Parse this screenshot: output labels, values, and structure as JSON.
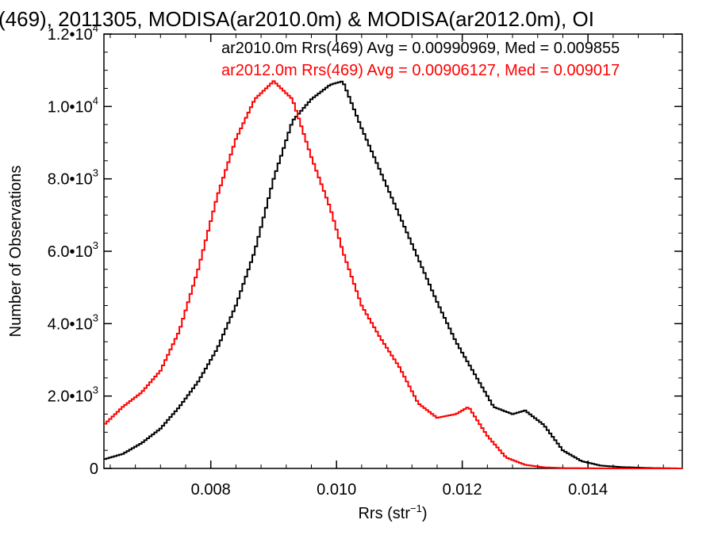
{
  "chart_data": {
    "type": "line",
    "title": "(469), 2011305, MODISA(ar2010.0m) & MODISA(ar2012.0m), OI",
    "xlabel": "Rrs (str",
    "xlabel_sup": "−1",
    "xlabel_suffix": ")",
    "ylabel": "Number of Observations",
    "xlim": [
      0.0063,
      0.0155
    ],
    "ylim": [
      0,
      12000
    ],
    "grid": false,
    "legend_position": "top-right",
    "x_ticks": [
      {
        "value": 0.008,
        "label": "0.008"
      },
      {
        "value": 0.01,
        "label": "0.010"
      },
      {
        "value": 0.012,
        "label": "0.012"
      },
      {
        "value": 0.014,
        "label": "0.014"
      }
    ],
    "y_ticks": [
      {
        "value": 0,
        "mant": "0",
        "exp": ""
      },
      {
        "value": 2000,
        "mant": "2.0•10",
        "exp": "3"
      },
      {
        "value": 4000,
        "mant": "4.0•10",
        "exp": "3"
      },
      {
        "value": 6000,
        "mant": "6.0•10",
        "exp": "3"
      },
      {
        "value": 8000,
        "mant": "8.0•10",
        "exp": "3"
      },
      {
        "value": 10000,
        "mant": "1.0•10",
        "exp": "4"
      },
      {
        "value": 12000,
        "mant": "1.2•10",
        "exp": "4"
      }
    ],
    "series": [
      {
        "name": "ar2010.0m Rrs(469) Avg = 0.00990969, Med = 0.009855",
        "color": "#000000",
        "x": [
          0.0063,
          0.0066,
          0.0069,
          0.0072,
          0.0075,
          0.0078,
          0.0081,
          0.0084,
          0.0087,
          0.009,
          0.0093,
          0.0096,
          0.0099,
          0.0101,
          0.0104,
          0.0107,
          0.011,
          0.0113,
          0.0116,
          0.0119,
          0.0122,
          0.0125,
          0.0128,
          0.013,
          0.0133,
          0.0136,
          0.0139,
          0.0142,
          0.0145,
          0.015,
          0.0155
        ],
        "y": [
          250,
          400,
          700,
          1100,
          1700,
          2400,
          3300,
          4500,
          6000,
          8000,
          9600,
          10200,
          10600,
          10700,
          9400,
          8200,
          7000,
          5800,
          4600,
          3500,
          2600,
          1700,
          1500,
          1600,
          1200,
          500,
          200,
          80,
          40,
          10,
          0
        ]
      },
      {
        "name": "ar2012.0m Rrs(469) Avg = 0.00906127, Med = 0.009017",
        "color": "#ff0000",
        "x": [
          0.0063,
          0.0066,
          0.0069,
          0.0072,
          0.0075,
          0.0078,
          0.0081,
          0.0084,
          0.0087,
          0.009,
          0.0093,
          0.0096,
          0.0099,
          0.0101,
          0.0104,
          0.0107,
          0.011,
          0.0113,
          0.0116,
          0.0119,
          0.0121,
          0.0124,
          0.0127,
          0.013,
          0.0133,
          0.0136,
          0.014,
          0.0145,
          0.0155
        ],
        "y": [
          1200,
          1700,
          2100,
          2700,
          3800,
          5500,
          7500,
          9100,
          10200,
          10700,
          10200,
          8600,
          7200,
          6000,
          4500,
          3600,
          2800,
          1800,
          1400,
          1500,
          1700,
          900,
          300,
          100,
          30,
          10,
          5,
          0,
          0
        ]
      }
    ]
  }
}
